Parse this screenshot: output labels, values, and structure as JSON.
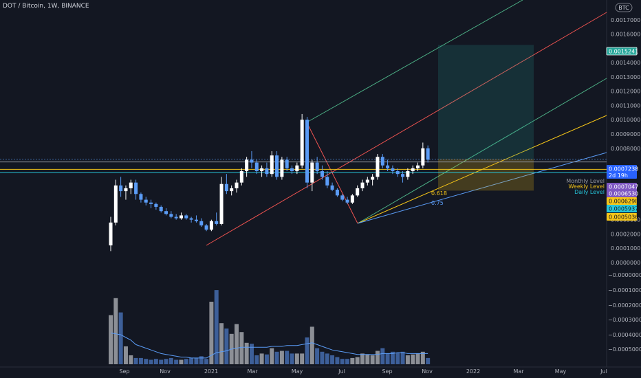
{
  "header": {
    "symbol_title": "DOT / Bitcoin, 1W, BINANCE",
    "currency_badge": "BTC"
  },
  "price_axis": {
    "ticks": [
      "0.0017000",
      "0.0016000",
      "0.0014000",
      "0.0013000",
      "0.0012000",
      "0.0011000",
      "0.0010000",
      "0.0009000",
      "0.0008000",
      "0.0003000",
      "0.0002000",
      "0.0001000",
      "0.0000000"
    ],
    "volume_ticks": [
      "−0.0000000",
      "−0.0001000",
      "−0.0002000",
      "−0.0003000",
      "−0.0004000",
      "−0.0005000"
    ]
  },
  "time_axis": {
    "labels": [
      "Sep",
      "Nov",
      "2021",
      "Mar",
      "May",
      "Jul",
      "Sep",
      "Nov",
      "2022",
      "Mar",
      "May",
      "Jul"
    ]
  },
  "price_tags": [
    {
      "text": "0.0015241",
      "bg": "#26a69a",
      "fg": "#ffffff",
      "border": "#ffffff"
    },
    {
      "text": "0.0007238",
      "bg": "#2962ff",
      "fg": "#ffffff",
      "sub": "2d 19h"
    },
    {
      "text": "0.0007047",
      "bg": "#7e57c2",
      "fg": "#ffffff"
    },
    {
      "text": "0.0006530",
      "bg": "#7e57c2",
      "fg": "#ffffff"
    },
    {
      "text": "0.0006298",
      "bg": "#f5c518",
      "fg": "#131722"
    },
    {
      "text": "0.0005937",
      "bg": "#26c6da",
      "fg": "#131722"
    },
    {
      "text": "0.0005036",
      "bg": "#f5c518",
      "fg": "#131722"
    }
  ],
  "level_labels": [
    {
      "text": "Monthly Level",
      "color": "#9598a1"
    },
    {
      "text": "Weekly Level",
      "color": "#f5c518"
    },
    {
      "text": "Daily Level",
      "color": "#26c6da"
    }
  ],
  "fib_labels": [
    {
      "text": "0.618",
      "color": "#f5c518"
    },
    {
      "text": "0.75",
      "color": "#5b9cf6"
    }
  ],
  "chart_data": {
    "type": "candlestick",
    "interval": "1W",
    "y_axis_range": [
      0,
      0.0018
    ],
    "x_time_labels": [
      "Sep",
      "Nov",
      "2021",
      "Mar",
      "May",
      "Jul",
      "Sep",
      "Nov",
      "2022",
      "Mar",
      "May",
      "Jul"
    ],
    "up_color": "#ffffff",
    "down_color": "#5b9cf6",
    "ohlc": [
      [
        0.00012,
        0.00032,
        8e-05,
        0.00028
      ],
      [
        0.00028,
        0.00058,
        0.00026,
        0.00054
      ],
      [
        0.00054,
        0.0006,
        0.00046,
        0.0005
      ],
      [
        0.0005,
        0.00054,
        0.00044,
        0.00052
      ],
      [
        0.00052,
        0.00058,
        0.00048,
        0.00056
      ],
      [
        0.00056,
        0.00058,
        0.00044,
        0.00048
      ],
      [
        0.00048,
        0.00049,
        0.00042,
        0.00044
      ],
      [
        0.00044,
        0.00046,
        0.0004,
        0.00042
      ],
      [
        0.00042,
        0.00044,
        0.00038,
        0.00041
      ],
      [
        0.00041,
        0.00042,
        0.00037,
        0.00039
      ],
      [
        0.00039,
        0.0004,
        0.00035,
        0.00036
      ],
      [
        0.00036,
        0.00038,
        0.00033,
        0.00034
      ],
      [
        0.00034,
        0.00036,
        0.00031,
        0.00032
      ],
      [
        0.00032,
        0.00034,
        0.0003,
        0.00031
      ],
      [
        0.00031,
        0.00035,
        0.0003,
        0.00033
      ],
      [
        0.00033,
        0.00034,
        0.0003,
        0.00031
      ],
      [
        0.00031,
        0.00032,
        0.00028,
        0.0003
      ],
      [
        0.0003,
        0.00033,
        0.00028,
        0.00029
      ],
      [
        0.00029,
        0.00031,
        0.00025,
        0.00026
      ],
      [
        0.00026,
        0.00027,
        0.00022,
        0.00023
      ],
      [
        0.00023,
        0.0003,
        0.00022,
        0.00029
      ],
      [
        0.00029,
        0.00035,
        0.00026,
        0.00027
      ],
      [
        0.00027,
        0.0006,
        0.00026,
        0.00055
      ],
      [
        0.00055,
        0.00062,
        0.00048,
        0.0005
      ],
      [
        0.0005,
        0.00054,
        0.00047,
        0.00052
      ],
      [
        0.00052,
        0.00058,
        0.00049,
        0.00056
      ],
      [
        0.00056,
        0.00066,
        0.00054,
        0.00064
      ],
      [
        0.00064,
        0.00074,
        0.0006,
        0.00072
      ],
      [
        0.00072,
        0.00078,
        0.00066,
        0.0007
      ],
      [
        0.0007,
        0.00072,
        0.00062,
        0.00064
      ],
      [
        0.00064,
        0.00068,
        0.0006,
        0.00066
      ],
      [
        0.00066,
        0.0007,
        0.0006,
        0.00062
      ],
      [
        0.00062,
        0.00078,
        0.0006,
        0.00075
      ],
      [
        0.00075,
        0.00078,
        0.00058,
        0.0006
      ],
      [
        0.0006,
        0.00074,
        0.00058,
        0.00072
      ],
      [
        0.00072,
        0.00074,
        0.00064,
        0.00066
      ],
      [
        0.00066,
        0.00068,
        0.00062,
        0.00064
      ],
      [
        0.00064,
        0.0007,
        0.00062,
        0.00068
      ],
      [
        0.00068,
        0.00104,
        0.00066,
        0.001
      ],
      [
        0.001,
        0.00102,
        0.00052,
        0.00056
      ],
      [
        0.00056,
        0.00072,
        0.0005,
        0.0007
      ],
      [
        0.0007,
        0.00074,
        0.00062,
        0.00064
      ],
      [
        0.00064,
        0.00068,
        0.00058,
        0.0006
      ],
      [
        0.0006,
        0.00064,
        0.00052,
        0.00054
      ],
      [
        0.00054,
        0.00056,
        0.0005,
        0.00051
      ],
      [
        0.00051,
        0.00052,
        0.00046,
        0.00047
      ],
      [
        0.00047,
        0.00048,
        0.00043,
        0.00044
      ],
      [
        0.00044,
        0.00046,
        0.00041,
        0.00042
      ],
      [
        0.00042,
        0.00048,
        0.00041,
        0.00047
      ],
      [
        0.00047,
        0.00054,
        0.00046,
        0.00052
      ],
      [
        0.00052,
        0.00058,
        0.0005,
        0.00056
      ],
      [
        0.00056,
        0.0006,
        0.00054,
        0.00058
      ],
      [
        0.00058,
        0.00062,
        0.00054,
        0.0006
      ],
      [
        0.0006,
        0.00076,
        0.00058,
        0.00074
      ],
      [
        0.00074,
        0.00076,
        0.00066,
        0.00068
      ],
      [
        0.00068,
        0.00072,
        0.00064,
        0.00066
      ],
      [
        0.00066,
        0.00068,
        0.00062,
        0.00064
      ],
      [
        0.00064,
        0.00066,
        0.0006,
        0.00062
      ],
      [
        0.00062,
        0.00064,
        0.00056,
        0.0006
      ],
      [
        0.0006,
        0.00066,
        0.00058,
        0.00064
      ],
      [
        0.00064,
        0.00068,
        0.00062,
        0.00066
      ],
      [
        0.00066,
        0.0007,
        0.00064,
        0.00068
      ],
      [
        0.00068,
        0.00084,
        0.00066,
        0.0008
      ],
      [
        0.0008,
        0.00082,
        0.0007,
        0.00072
      ]
    ],
    "volume": [
      0.55,
      0.74,
      0.58,
      0.2,
      0.1,
      0.07,
      0.07,
      0.06,
      0.05,
      0.06,
      0.05,
      0.06,
      0.07,
      0.05,
      0.05,
      0.06,
      0.07,
      0.07,
      0.09,
      0.06,
      0.7,
      0.83,
      0.46,
      0.4,
      0.34,
      0.45,
      0.36,
      0.24,
      0.23,
      0.1,
      0.12,
      0.11,
      0.18,
      0.14,
      0.15,
      0.15,
      0.12,
      0.12,
      0.12,
      0.3,
      0.42,
      0.18,
      0.14,
      0.12,
      0.1,
      0.08,
      0.06,
      0.06,
      0.07,
      0.08,
      0.12,
      0.11,
      0.1,
      0.15,
      0.18,
      0.12,
      0.14,
      0.13,
      0.14,
      0.1,
      0.11,
      0.12,
      0.14,
      0.07
    ],
    "volume_ma": [
      0.35,
      0.34,
      0.33,
      0.3,
      0.27,
      0.22,
      0.2,
      0.18,
      0.16,
      0.14,
      0.12,
      0.11,
      0.1,
      0.09,
      0.08,
      0.08,
      0.07,
      0.07,
      0.07,
      0.07,
      0.1,
      0.13,
      0.14,
      0.15,
      0.17,
      0.18,
      0.19,
      0.19,
      0.19,
      0.19,
      0.19,
      0.19,
      0.2,
      0.2,
      0.2,
      0.21,
      0.21,
      0.21,
      0.22,
      0.23,
      0.24,
      0.22,
      0.2,
      0.18,
      0.16,
      0.15,
      0.14,
      0.13,
      0.12,
      0.11,
      0.11,
      0.11,
      0.11,
      0.11,
      0.12,
      0.12,
      0.12,
      0.13,
      0.13,
      0.12,
      0.12,
      0.12,
      0.12,
      0.12
    ],
    "horizontal_levels": [
      {
        "name": "Monthly Level",
        "price": 0.0007047,
        "color": "#9598a1"
      },
      {
        "name": "Weekly Level",
        "price": 0.000653,
        "color": "#f5c518"
      },
      {
        "name": "Daily Level",
        "price": 0.0006298,
        "color": "#26c6da"
      }
    ],
    "current_price": 0.0007238,
    "position": {
      "entry": 0.000725,
      "target": 0.0015241,
      "stop": 0.0005036
    }
  }
}
